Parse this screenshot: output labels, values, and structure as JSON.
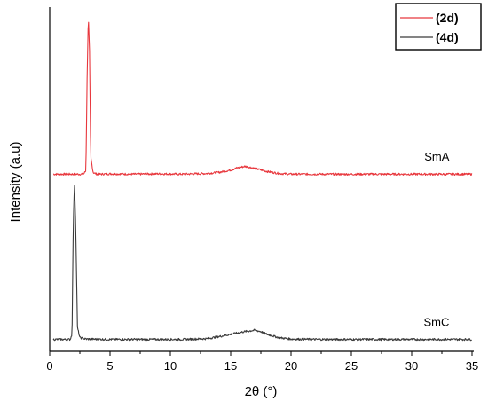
{
  "chart_data": {
    "type": "line",
    "xlabel": "2θ (°)",
    "ylabel": "Intensity (a.u)",
    "xlim": [
      0,
      35
    ],
    "ylim": [
      0,
      1
    ],
    "x_ticks": [
      "0",
      "5",
      "10",
      "15",
      "20",
      "25",
      "30",
      "35"
    ],
    "y_ticks_shown": false,
    "grid": false,
    "legend_position": "top-right",
    "legend": [
      {
        "label": "(2d)",
        "color": "#e8373d"
      },
      {
        "label": "(4d)",
        "color": "#3a3a3a"
      }
    ],
    "series": [
      {
        "name": "(2d)",
        "color": "#e8373d",
        "x": [
          0.3,
          1.0,
          2.0,
          2.8,
          3.0,
          3.1,
          3.2,
          3.3,
          3.4,
          3.6,
          3.9,
          4.2,
          5,
          7,
          9,
          11,
          13,
          14,
          15,
          15.5,
          16.2,
          17,
          18,
          19,
          20,
          22,
          25,
          28,
          30,
          33,
          35
        ],
        "y": [
          0.52,
          0.52,
          0.52,
          0.52,
          0.53,
          0.8,
          0.985,
          0.88,
          0.57,
          0.525,
          0.52,
          0.52,
          0.521,
          0.52,
          0.521,
          0.52,
          0.522,
          0.525,
          0.532,
          0.538,
          0.543,
          0.537,
          0.528,
          0.522,
          0.52,
          0.52,
          0.52,
          0.52,
          0.52,
          0.52,
          0.52
        ]
      },
      {
        "name": "(4d)",
        "color": "#3a3a3a",
        "x": [
          0.3,
          1.0,
          1.7,
          1.85,
          1.95,
          2.05,
          2.15,
          2.3,
          2.5,
          3.0,
          5,
          8,
          11,
          13,
          14,
          15,
          16,
          17,
          17.5,
          18,
          19,
          20,
          22,
          25,
          28,
          30,
          33,
          35
        ],
        "y": [
          0.035,
          0.035,
          0.035,
          0.05,
          0.36,
          0.5,
          0.38,
          0.07,
          0.04,
          0.036,
          0.035,
          0.035,
          0.035,
          0.037,
          0.043,
          0.05,
          0.057,
          0.062,
          0.058,
          0.05,
          0.04,
          0.036,
          0.035,
          0.035,
          0.035,
          0.035,
          0.035,
          0.035
        ]
      }
    ],
    "annotations": [
      {
        "text": "SmA",
        "x": 31.5,
        "y": 0.57
      },
      {
        "text": "SmC",
        "x": 31.5,
        "y": 0.085
      }
    ]
  }
}
